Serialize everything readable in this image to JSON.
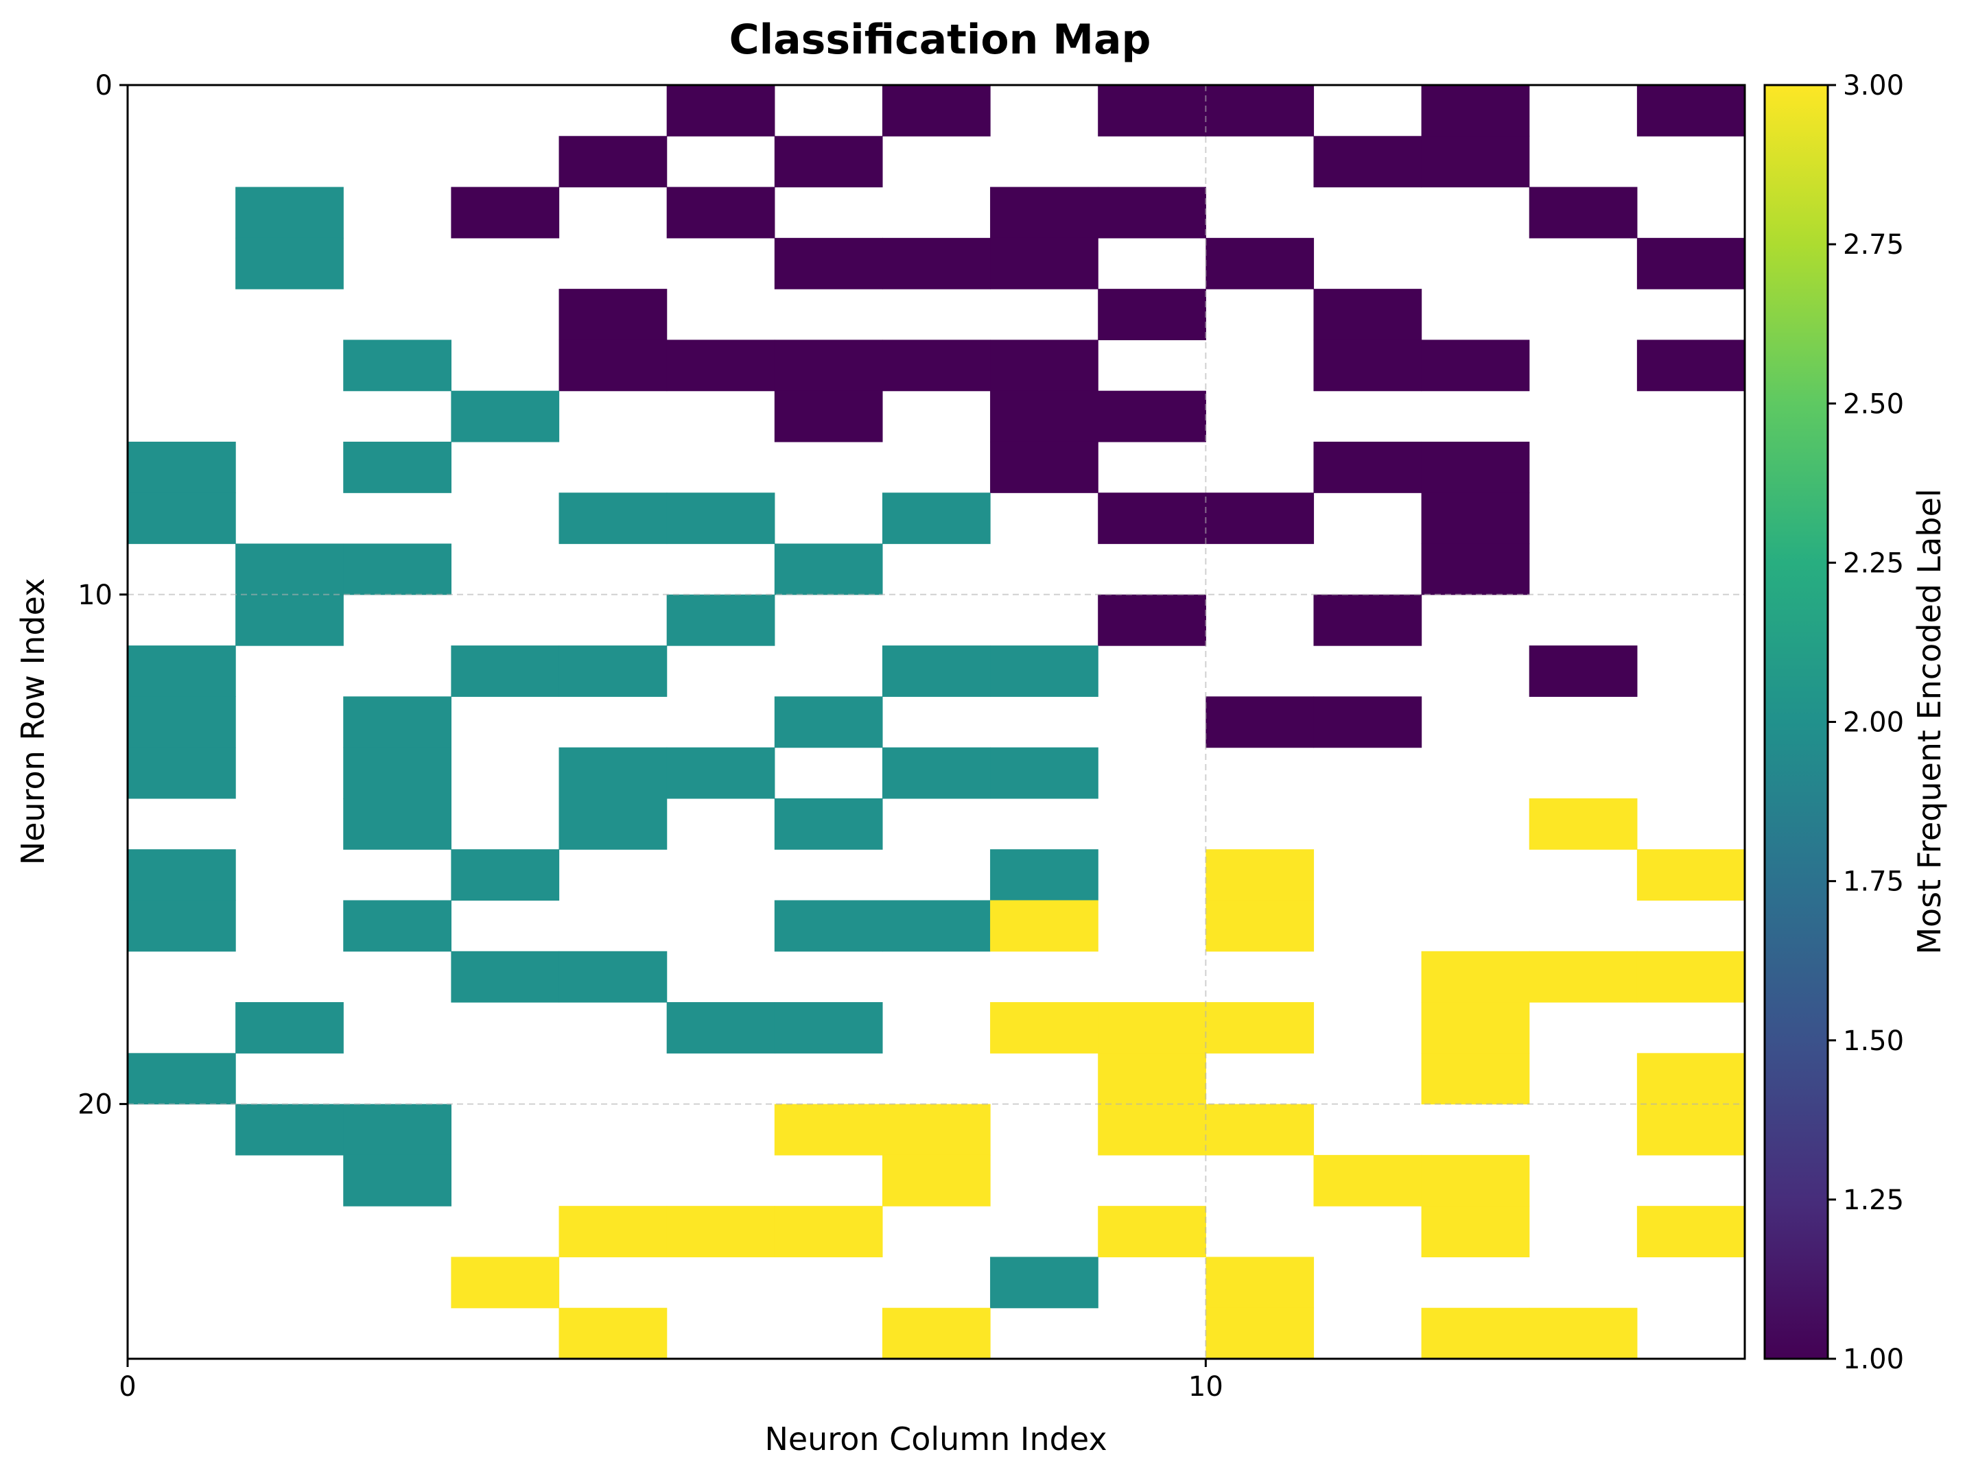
{
  "chart_data": {
    "type": "heatmap",
    "title": "Classification Map",
    "xlabel": "Neuron Column Index",
    "ylabel": "Neuron Row Index",
    "x_ticks": [
      0,
      10
    ],
    "y_ticks": [
      0,
      10,
      20
    ],
    "xlim": [
      0,
      15
    ],
    "ylim": [
      25,
      0
    ],
    "grid": true,
    "colormap": "viridis",
    "colorbar": {
      "label": "Most Frequent Encoded Label",
      "range": [
        1.0,
        3.0
      ],
      "ticks": [
        "1.00",
        "1.25",
        "1.50",
        "1.75",
        "2.00",
        "2.25",
        "2.50",
        "2.75",
        "3.00"
      ]
    },
    "colors": {
      "label_1": "#440154",
      "label_2": "#21918c",
      "label_3": "#fde725"
    },
    "empty_value": 0,
    "grid_values": [
      [
        0,
        0,
        0,
        0,
        0,
        1,
        0,
        1,
        0,
        1,
        1,
        0,
        1,
        0,
        1
      ],
      [
        0,
        0,
        0,
        0,
        1,
        0,
        1,
        0,
        0,
        0,
        0,
        1,
        1,
        0,
        0
      ],
      [
        0,
        2,
        0,
        1,
        0,
        1,
        0,
        0,
        1,
        1,
        0,
        0,
        0,
        1,
        0
      ],
      [
        0,
        2,
        0,
        0,
        0,
        0,
        1,
        1,
        1,
        0,
        1,
        0,
        0,
        0,
        1
      ],
      [
        0,
        0,
        0,
        0,
        1,
        0,
        0,
        0,
        0,
        1,
        0,
        1,
        0,
        0,
        0
      ],
      [
        0,
        0,
        2,
        0,
        1,
        1,
        1,
        1,
        1,
        0,
        0,
        1,
        1,
        0,
        1
      ],
      [
        0,
        0,
        0,
        2,
        0,
        0,
        1,
        0,
        1,
        1,
        0,
        0,
        0,
        0,
        0
      ],
      [
        2,
        0,
        2,
        0,
        0,
        0,
        0,
        0,
        1,
        0,
        0,
        1,
        1,
        0,
        0
      ],
      [
        2,
        0,
        0,
        0,
        2,
        2,
        0,
        2,
        0,
        1,
        1,
        0,
        1,
        0,
        0
      ],
      [
        0,
        2,
        2,
        0,
        0,
        0,
        2,
        0,
        0,
        0,
        0,
        0,
        1,
        0,
        0
      ],
      [
        0,
        2,
        0,
        0,
        0,
        2,
        0,
        0,
        0,
        1,
        0,
        1,
        0,
        0,
        0
      ],
      [
        2,
        0,
        0,
        2,
        2,
        0,
        0,
        2,
        2,
        0,
        0,
        0,
        0,
        1,
        0
      ],
      [
        2,
        0,
        2,
        0,
        0,
        0,
        2,
        0,
        0,
        0,
        1,
        1,
        0,
        0,
        0
      ],
      [
        2,
        0,
        2,
        0,
        2,
        2,
        0,
        2,
        2,
        0,
        0,
        0,
        0,
        0,
        0
      ],
      [
        0,
        0,
        2,
        0,
        2,
        0,
        2,
        0,
        0,
        0,
        0,
        0,
        0,
        3,
        0
      ],
      [
        2,
        0,
        0,
        2,
        0,
        0,
        0,
        0,
        2,
        0,
        3,
        0,
        0,
        0,
        3
      ],
      [
        2,
        0,
        2,
        0,
        0,
        0,
        2,
        2,
        3,
        0,
        3,
        0,
        0,
        0,
        0
      ],
      [
        0,
        0,
        0,
        2,
        2,
        0,
        0,
        0,
        0,
        0,
        0,
        0,
        3,
        3,
        3
      ],
      [
        0,
        2,
        0,
        0,
        0,
        2,
        2,
        0,
        3,
        3,
        3,
        0,
        3,
        0,
        0
      ],
      [
        2,
        0,
        0,
        0,
        0,
        0,
        0,
        0,
        0,
        3,
        0,
        0,
        3,
        0,
        3
      ],
      [
        0,
        2,
        2,
        0,
        0,
        0,
        3,
        3,
        0,
        3,
        3,
        0,
        0,
        0,
        3
      ],
      [
        0,
        0,
        2,
        0,
        0,
        0,
        0,
        3,
        0,
        0,
        0,
        3,
        3,
        0,
        0
      ],
      [
        0,
        0,
        0,
        0,
        3,
        3,
        3,
        0,
        0,
        3,
        0,
        0,
        3,
        0,
        3
      ],
      [
        0,
        0,
        0,
        3,
        0,
        0,
        0,
        0,
        2,
        0,
        3,
        0,
        0,
        0,
        0
      ],
      [
        0,
        0,
        0,
        0,
        3,
        0,
        0,
        3,
        0,
        0,
        3,
        0,
        3,
        3,
        0
      ]
    ]
  }
}
